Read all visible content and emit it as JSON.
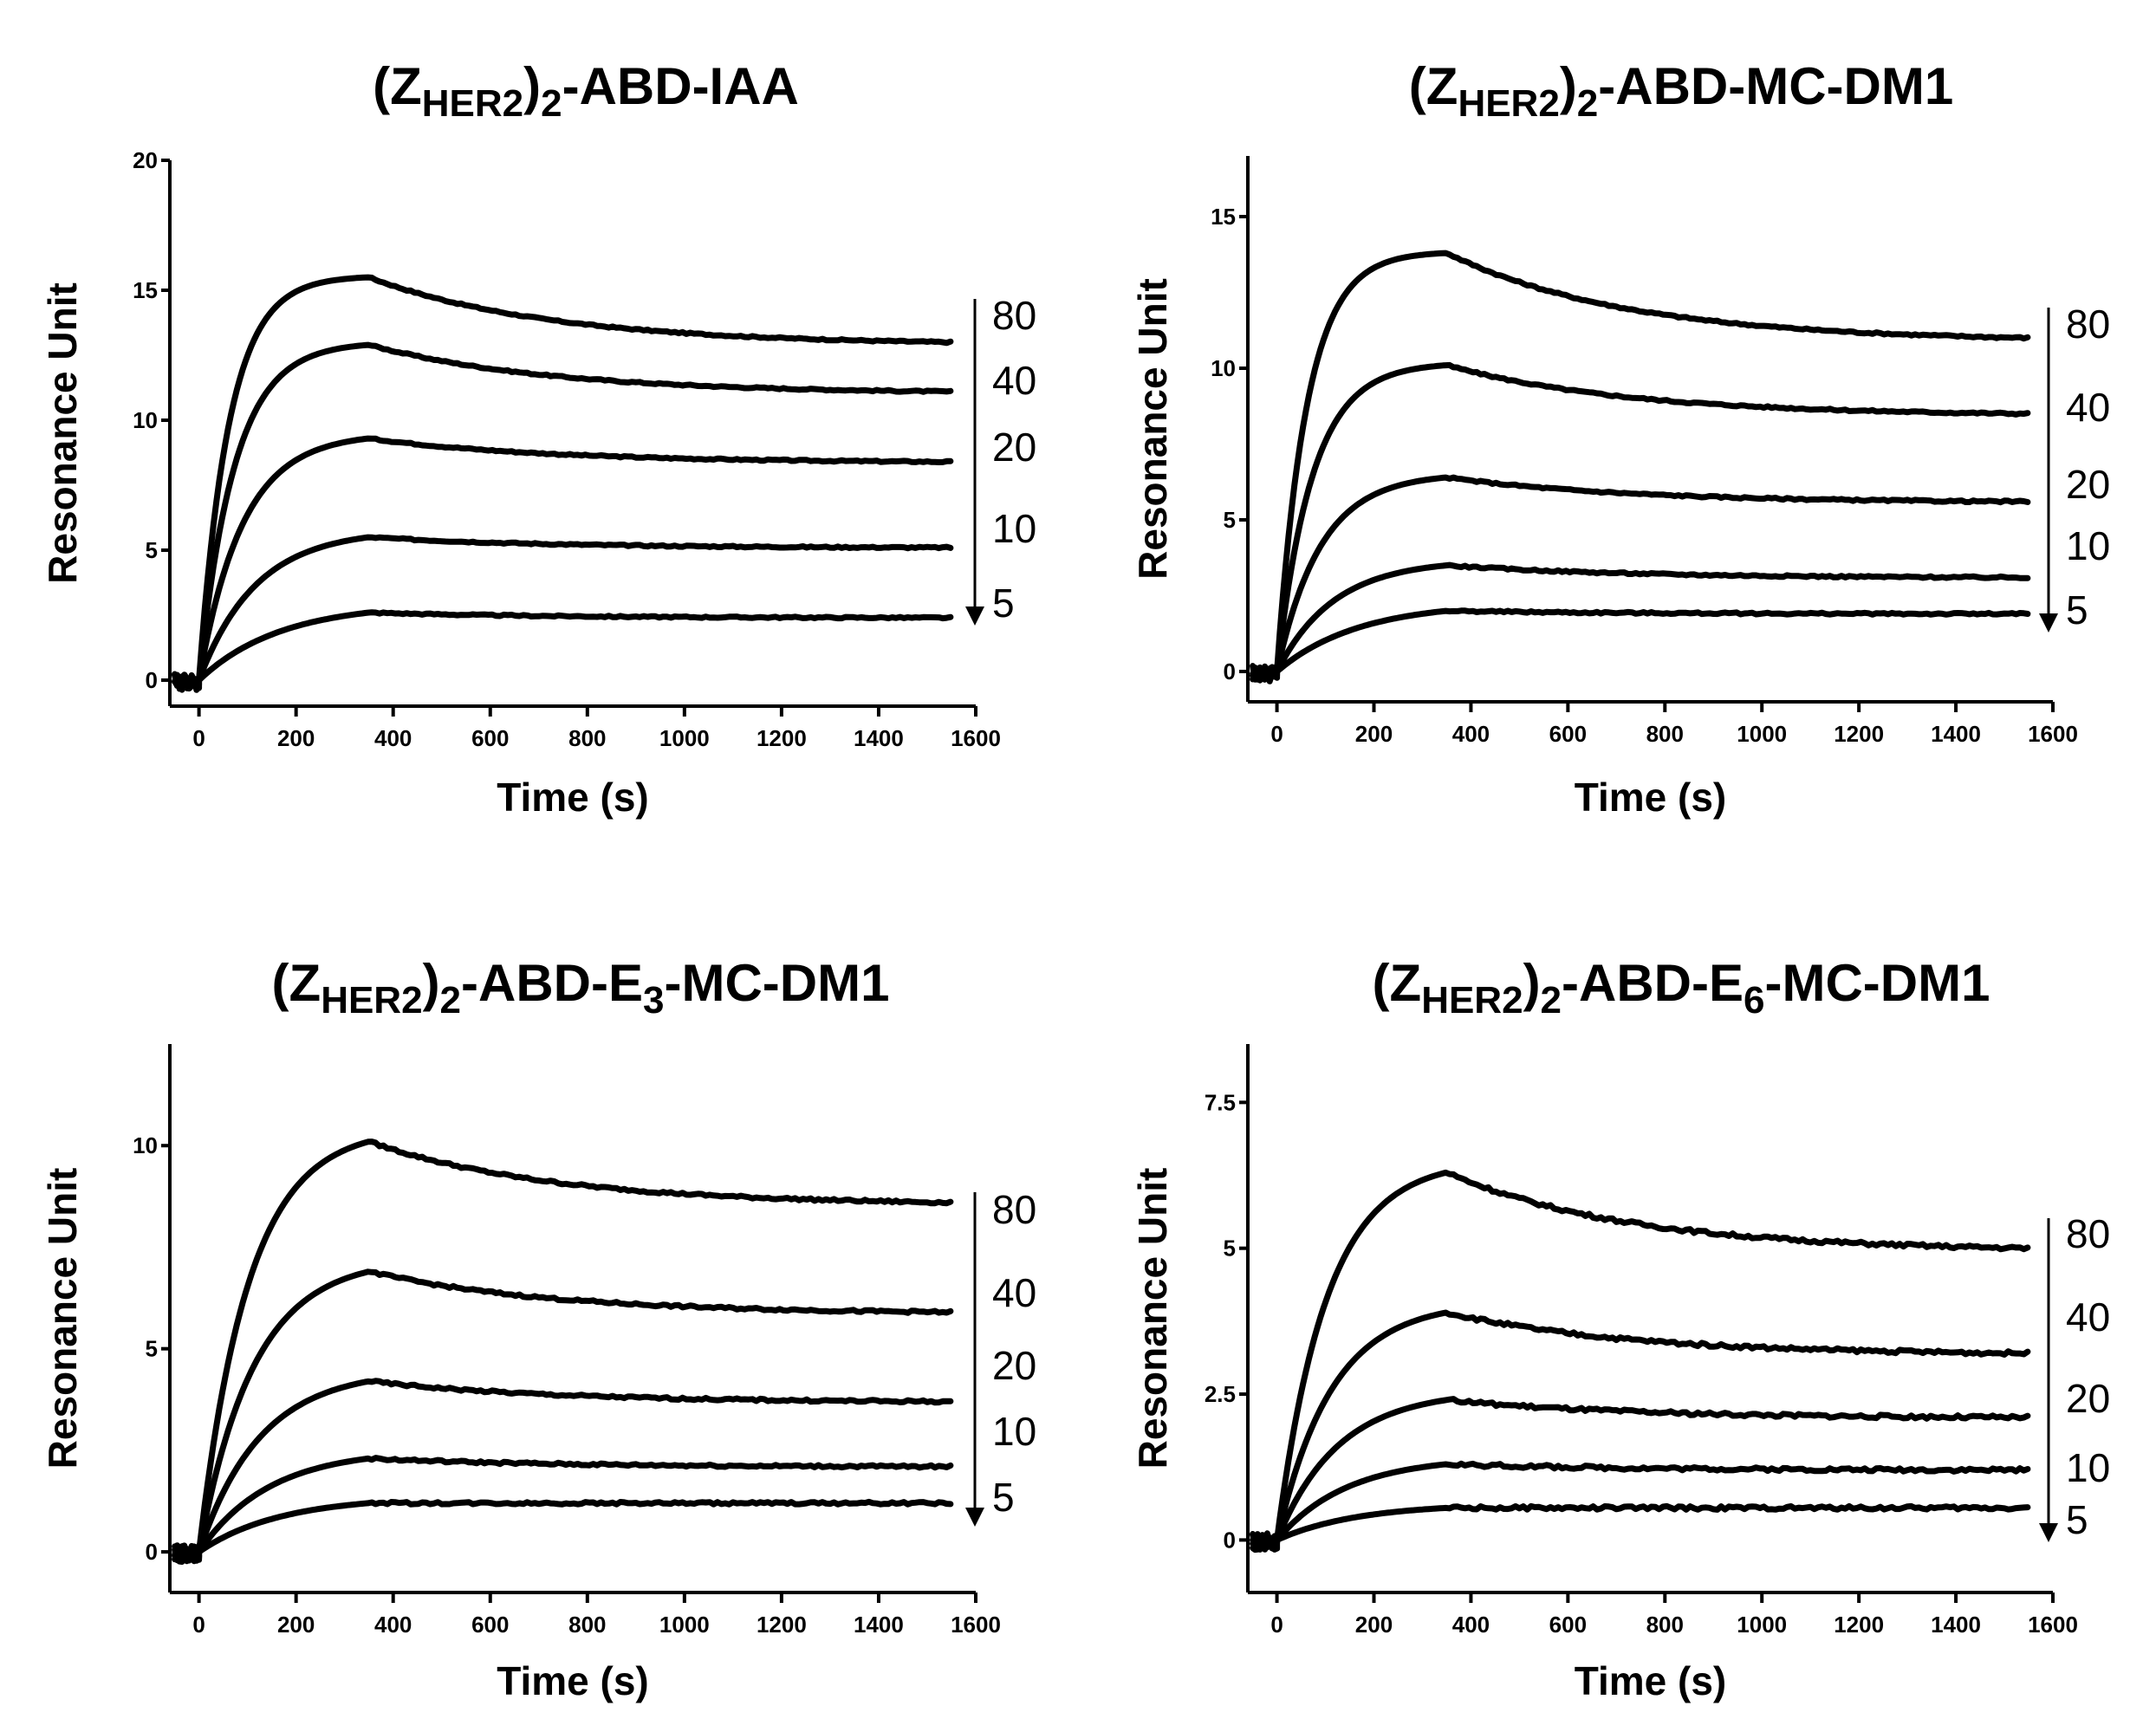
{
  "chart_data": [
    {
      "type": "line",
      "title": {
        "prefix": "(Z",
        "subscript": "HER2",
        "middle": ")",
        "subscript2": "2",
        "suffix": "-ABD-IAA",
        "subscript3": "",
        "suffix2": ""
      },
      "xlabel": "Time (s)",
      "ylabel": "Resonance Unit",
      "xlim": [
        -60,
        1600
      ],
      "ylim": [
        -1,
        20
      ],
      "xticks": [
        "0",
        "200",
        "400",
        "600",
        "800",
        "1000",
        "1200",
        "1400",
        "1600"
      ],
      "yticks": [
        "0",
        "5",
        "10",
        "15",
        "20"
      ],
      "association_end": 350,
      "series": [
        {
          "name": "80",
          "peak": 15.5,
          "end": 13.0
        },
        {
          "name": "40",
          "peak": 12.9,
          "end": 11.1
        },
        {
          "name": "20",
          "peak": 9.3,
          "end": 8.4
        },
        {
          "name": "10",
          "peak": 5.5,
          "end": 5.1
        },
        {
          "name": "5",
          "peak": 2.6,
          "end": 2.4
        }
      ],
      "concentration_labels": [
        "80",
        "40",
        "20",
        "10",
        "5"
      ]
    },
    {
      "type": "line",
      "title": {
        "prefix": "(Z",
        "subscript": "HER2",
        "middle": ")",
        "subscript2": "2",
        "suffix": "-ABD-MC-DM1",
        "subscript3": "",
        "suffix2": ""
      },
      "xlabel": "Time (s)",
      "ylabel": "Resonance Unit",
      "xlim": [
        -60,
        1600
      ],
      "ylim": [
        -1,
        17
      ],
      "xticks": [
        "0",
        "200",
        "400",
        "600",
        "800",
        "1000",
        "1200",
        "1400",
        "1600"
      ],
      "yticks": [
        "0",
        "5",
        "10",
        "15"
      ],
      "association_end": 350,
      "series": [
        {
          "name": "80",
          "peak": 13.8,
          "end": 11.0
        },
        {
          "name": "40",
          "peak": 10.1,
          "end": 8.5
        },
        {
          "name": "20",
          "peak": 6.4,
          "end": 5.6
        },
        {
          "name": "10",
          "peak": 3.5,
          "end": 3.1
        },
        {
          "name": "5",
          "peak": 2.0,
          "end": 1.9
        }
      ],
      "concentration_labels": [
        "80",
        "40",
        "20",
        "10",
        "5"
      ]
    },
    {
      "type": "line",
      "title": {
        "prefix": "(Z",
        "subscript": "HER2",
        "middle": ")",
        "subscript2": "2",
        "suffix": "-ABD-E",
        "subscript3": "3",
        "suffix2": "-MC-DM1"
      },
      "xlabel": "Time (s)",
      "ylabel": "Resonance Unit",
      "xlim": [
        -60,
        1600
      ],
      "ylim": [
        -1,
        12.5
      ],
      "xticks": [
        "0",
        "200",
        "400",
        "600",
        "800",
        "1000",
        "1200",
        "1400",
        "1600"
      ],
      "yticks": [
        "0",
        "5",
        "10"
      ],
      "association_end": 350,
      "series": [
        {
          "name": "80",
          "peak": 10.1,
          "end": 8.6
        },
        {
          "name": "40",
          "peak": 6.9,
          "end": 5.9
        },
        {
          "name": "20",
          "peak": 4.2,
          "end": 3.7
        },
        {
          "name": "10",
          "peak": 2.3,
          "end": 2.1
        },
        {
          "name": "5",
          "peak": 1.2,
          "end": 1.2
        }
      ],
      "concentration_labels": [
        "80",
        "40",
        "20",
        "10",
        "5"
      ]
    },
    {
      "type": "line",
      "title": {
        "prefix": "(Z",
        "subscript": "HER2",
        "middle": ")",
        "subscript2": "2",
        "suffix": "-ABD-E",
        "subscript3": "6",
        "suffix2": "-MC-DM1"
      },
      "xlabel": "Time (s)",
      "ylabel": "Resonance Unit",
      "xlim": [
        -60,
        1600
      ],
      "ylim": [
        -0.9,
        8.5
      ],
      "xticks": [
        "0",
        "200",
        "400",
        "600",
        "800",
        "1000",
        "1200",
        "1400",
        "1600"
      ],
      "yticks": [
        "0",
        "2.5",
        "5",
        "7.5"
      ],
      "association_end": 350,
      "series": [
        {
          "name": "80",
          "peak": 6.3,
          "end": 5.0
        },
        {
          "name": "40",
          "peak": 3.9,
          "end": 3.2
        },
        {
          "name": "20",
          "peak": 2.4,
          "end": 2.1
        },
        {
          "name": "10",
          "peak": 1.3,
          "end": 1.2
        },
        {
          "name": "5",
          "peak": 0.55,
          "end": 0.55
        }
      ],
      "concentration_labels": [
        "80",
        "40",
        "20",
        "10",
        "5"
      ]
    }
  ]
}
